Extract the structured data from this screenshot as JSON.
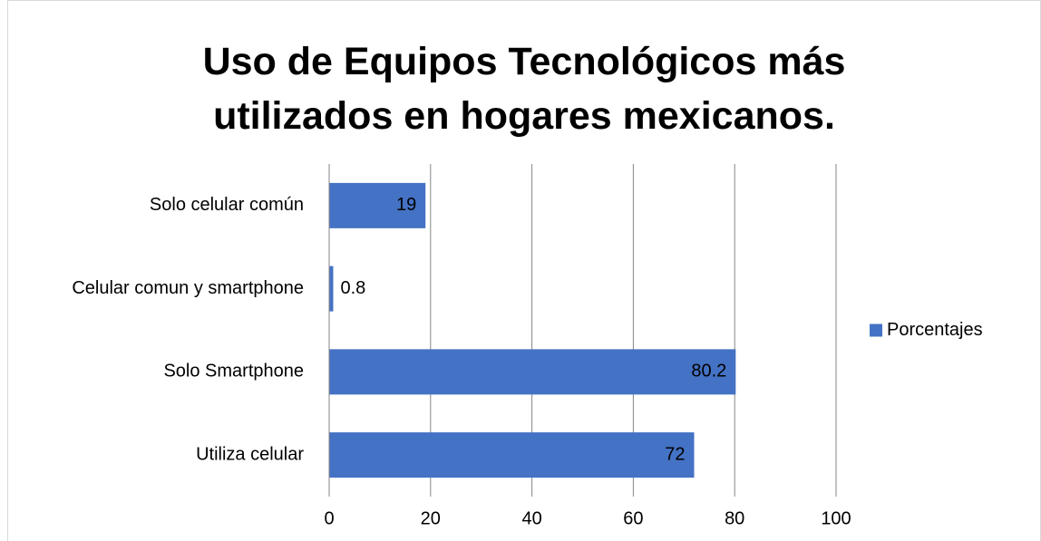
{
  "chart_data": {
    "type": "bar",
    "orientation": "horizontal",
    "title": "Uso de Equipos Tecnológicos más utilizados en hogares mexicanos.",
    "categories": [
      "Solo celular común",
      "Celular comun y smartphone",
      "Solo Smartphone",
      "Utiliza celular"
    ],
    "series": [
      {
        "name": "Porcentajes",
        "color": "#4472c4",
        "values": [
          19,
          0.8,
          80.2,
          72
        ]
      }
    ],
    "xlim": [
      0,
      100
    ],
    "xticks": [
      0,
      20,
      40,
      60,
      80,
      100
    ],
    "grid": true,
    "legend": "right"
  }
}
